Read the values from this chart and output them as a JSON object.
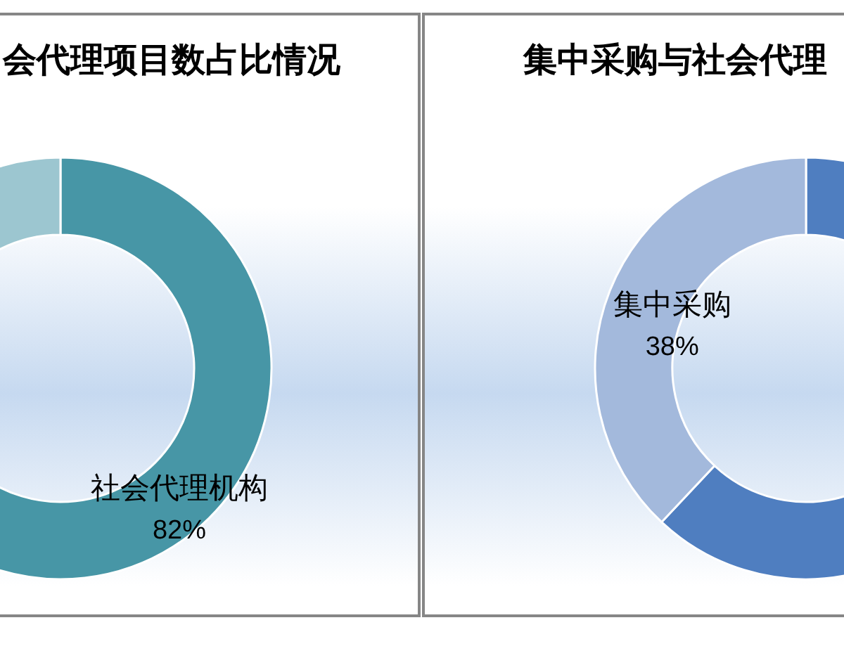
{
  "chart_data": [
    {
      "type": "donut",
      "title": "会代理项目数占比情况",
      "categories": [
        "社会代理机构",
        null
      ],
      "values": [
        82,
        18
      ],
      "colors": [
        "#4796a6",
        "#9cc6d0"
      ],
      "value_labels": [
        "82%",
        null
      ]
    },
    {
      "type": "donut",
      "title": "集中采购与社会代理",
      "categories": [
        null,
        "集中采购"
      ],
      "values": [
        62,
        38
      ],
      "colors": [
        "#4f7ec0",
        "#a3b9dc"
      ],
      "value_labels": [
        null,
        "38%"
      ]
    }
  ]
}
